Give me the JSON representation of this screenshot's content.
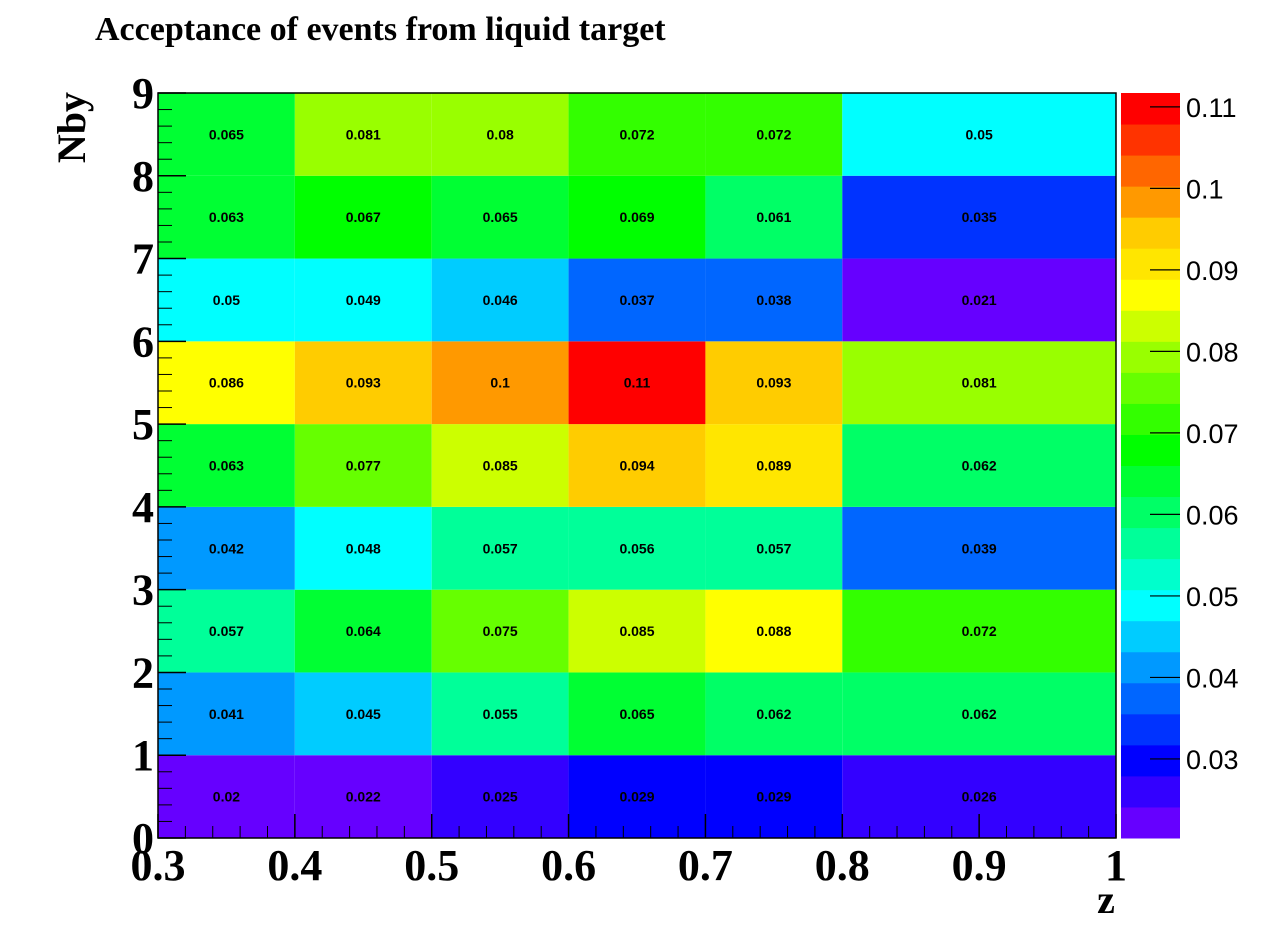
{
  "chart_data": {
    "type": "heatmap",
    "title": "Acceptance of events from liquid target",
    "xlabel": "z",
    "ylabel": "Nby",
    "x_edges": [
      0.3,
      0.4,
      0.5,
      0.6,
      0.7,
      0.8,
      1.0
    ],
    "y_edges": [
      0,
      1,
      2,
      3,
      4,
      5,
      6,
      7,
      8,
      9
    ],
    "xlim": [
      0.3,
      1.0
    ],
    "ylim": [
      0,
      9
    ],
    "x_ticks": [
      "0.3",
      "0.4",
      "0.5",
      "0.6",
      "0.7",
      "0.8",
      "0.9",
      "1"
    ],
    "y_ticks": [
      "0",
      "1",
      "2",
      "3",
      "4",
      "5",
      "6",
      "7",
      "8",
      "9"
    ],
    "values": [
      [
        0.02,
        0.022,
        0.025,
        0.029,
        0.029,
        0.026
      ],
      [
        0.041,
        0.045,
        0.055,
        0.065,
        0.062,
        0.062
      ],
      [
        0.057,
        0.064,
        0.075,
        0.085,
        0.088,
        0.072
      ],
      [
        0.042,
        0.048,
        0.057,
        0.056,
        0.057,
        0.039
      ],
      [
        0.063,
        0.077,
        0.085,
        0.094,
        0.089,
        0.062
      ],
      [
        0.086,
        0.093,
        0.1,
        0.11,
        0.093,
        0.081
      ],
      [
        0.05,
        0.049,
        0.046,
        0.037,
        0.038,
        0.021
      ],
      [
        0.063,
        0.067,
        0.065,
        0.069,
        0.061,
        0.035
      ],
      [
        0.065,
        0.081,
        0.08,
        0.072,
        0.072,
        0.05
      ]
    ],
    "value_labels": [
      [
        "0.02",
        "0.022",
        "0.025",
        "0.029",
        "0.029",
        "0.026"
      ],
      [
        "0.041",
        "0.045",
        "0.055",
        "0.065",
        "0.062",
        "0.062"
      ],
      [
        "0.057",
        "0.064",
        "0.075",
        "0.085",
        "0.088",
        "0.072"
      ],
      [
        "0.042",
        "0.048",
        "0.057",
        "0.056",
        "0.057",
        "0.039"
      ],
      [
        "0.063",
        "0.077",
        "0.085",
        "0.094",
        "0.089",
        "0.062"
      ],
      [
        "0.086",
        "0.093",
        "0.1",
        "0.11",
        "0.093",
        "0.081"
      ],
      [
        "0.05",
        "0.049",
        "0.046",
        "0.037",
        "0.038",
        "0.021"
      ],
      [
        "0.063",
        "0.067",
        "0.065",
        "0.069",
        "0.061",
        "0.035"
      ],
      [
        "0.065",
        "0.081",
        "0.08",
        "0.072",
        "0.072",
        "0.05"
      ]
    ],
    "colorbar": {
      "range": [
        0.0203,
        0.1117
      ],
      "tick_values": [
        0.03,
        0.04,
        0.05,
        0.06,
        0.07,
        0.08,
        0.09,
        0.1,
        0.11
      ],
      "tick_labels": [
        "0.03",
        "0.04",
        "0.05",
        "0.06",
        "0.07",
        "0.08",
        "0.09",
        "0.1",
        "0.11"
      ],
      "colors": [
        "#6600ff",
        "#3300ff",
        "#0000ff",
        "#0033ff",
        "#0066ff",
        "#0099ff",
        "#00ccff",
        "#00ffff",
        "#00ffcc",
        "#00ff99",
        "#00ff66",
        "#00ff33",
        "#00ff00",
        "#33ff00",
        "#66ff00",
        "#99ff00",
        "#ccff00",
        "#ffff00",
        "#ffe600",
        "#ffcc00",
        "#ff9900",
        "#ff6600",
        "#ff3300",
        "#ff0000"
      ]
    },
    "grid": false,
    "legend": "colorbar-right"
  }
}
